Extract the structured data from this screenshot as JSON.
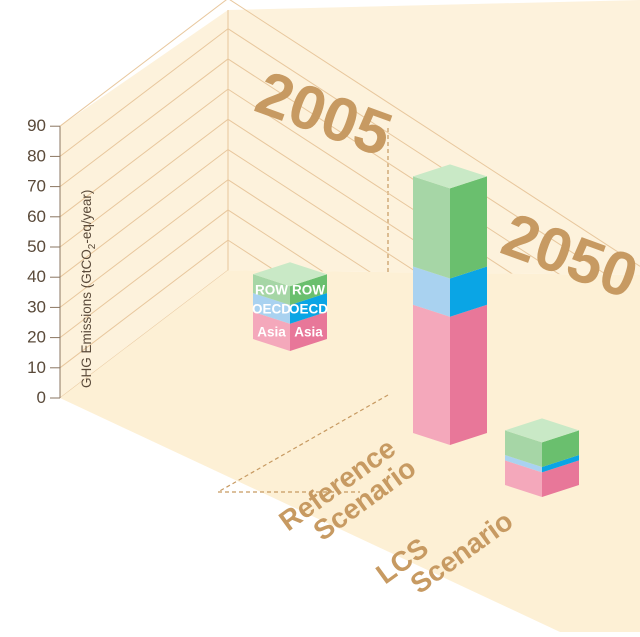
{
  "colors": {
    "background": "#ffffff",
    "wall": "#fdf2dc",
    "floor": "#fdf0d5",
    "gridline": "#e8c79d",
    "axis": "#8a7560",
    "accent_text": "#c79a62",
    "row_front": "#a6d6a6",
    "row_side": "#6abf6e",
    "row_top": "#c9e9c6",
    "oecd_front": "#a9d2f0",
    "oecd_side": "#0aa5e5",
    "asia_front": "#f4a8bb",
    "asia_side": "#e87799"
  },
  "chart_data": {
    "type": "bar",
    "title": "",
    "ylabel": "GHG Emissions (GtCO2-eq/year)",
    "ylabel_main": "GHG Emissions (GtCO",
    "ylabel_sub": "2",
    "ylabel_tail": "-eq/year)",
    "ylim": [
      0,
      90
    ],
    "yticks": [
      0,
      10,
      20,
      30,
      40,
      50,
      60,
      70,
      80,
      90
    ],
    "grid": true,
    "series_order": [
      "Asia",
      "OECD",
      "ROW"
    ],
    "period_labels": [
      "2005",
      "2050"
    ],
    "scenario_labels": {
      "reference": [
        "Reference",
        "Scenario"
      ],
      "lcs": [
        "LCS",
        "Scenario"
      ]
    },
    "bars": [
      {
        "period": "2005",
        "scenario": "",
        "values": {
          "Asia": 13,
          "OECD": 9,
          "ROW": 9
        },
        "segment_labels": [
          "Asia",
          "OECD",
          "ROW"
        ]
      },
      {
        "period": "2050",
        "scenario": "Reference Scenario",
        "values": {
          "Asia": 47,
          "OECD": 14,
          "ROW": 33
        },
        "segment_labels": []
      },
      {
        "period": "2050",
        "scenario": "LCS Scenario",
        "values": {
          "Asia": 9,
          "OECD": 2,
          "ROW": 9
        },
        "segment_labels": []
      }
    ]
  }
}
